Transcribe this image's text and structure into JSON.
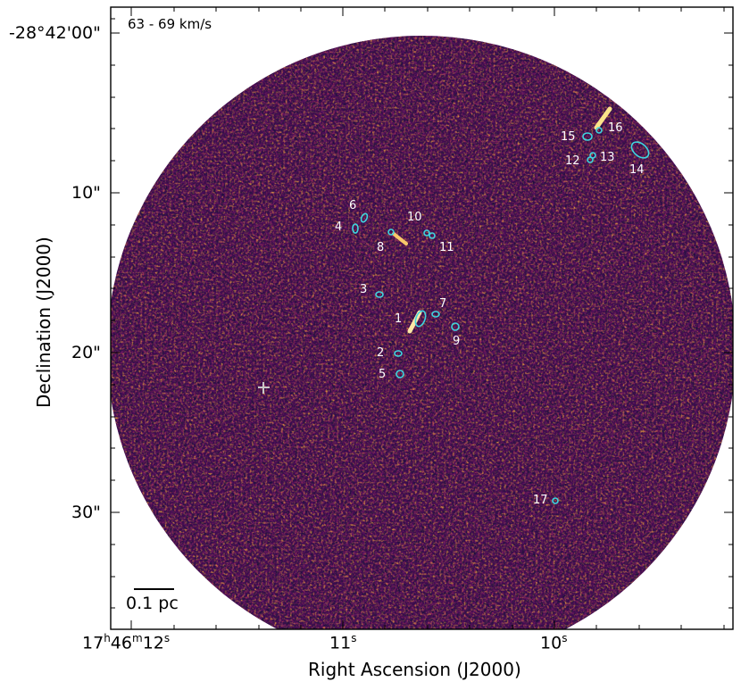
{
  "figure": {
    "velocity_label": "63 - 69   km/s",
    "x_axis_title": "Right Ascension (J2000)",
    "y_axis_title": "Declination (J2000)",
    "scale_bar_label": "0.1 pc",
    "colormap": [
      "#1b0b3b",
      "#4b0c6b",
      "#7d1d6c",
      "#b1325a",
      "#e05536",
      "#f98c0a",
      "#fcd03e"
    ],
    "y_ticks": [
      {
        "label": "-28°42'00\"",
        "dec_arcsec": 0
      },
      {
        "label": "10\"",
        "dec_arcsec": 10
      },
      {
        "label": "20\"",
        "dec_arcsec": 20
      },
      {
        "label": "30\"",
        "dec_arcsec": 30
      }
    ],
    "x_ticks": [
      {
        "label_main": "17",
        "h": "h",
        "m46": "46",
        "m": "m",
        "s12": "12",
        "s": "s",
        "ra_sec": 12
      },
      {
        "label_main": "11",
        "s": "s",
        "ra_sec": 11
      },
      {
        "label_main": "10",
        "s": "s",
        "ra_sec": 10
      }
    ]
  },
  "sources": [
    {
      "id": "1"
    },
    {
      "id": "2"
    },
    {
      "id": "3"
    },
    {
      "id": "4"
    },
    {
      "id": "5"
    },
    {
      "id": "6"
    },
    {
      "id": "7"
    },
    {
      "id": "8"
    },
    {
      "id": "9"
    },
    {
      "id": "10"
    },
    {
      "id": "11"
    },
    {
      "id": "12"
    },
    {
      "id": "13"
    },
    {
      "id": "14"
    },
    {
      "id": "15"
    },
    {
      "id": "16"
    },
    {
      "id": "17"
    }
  ]
}
